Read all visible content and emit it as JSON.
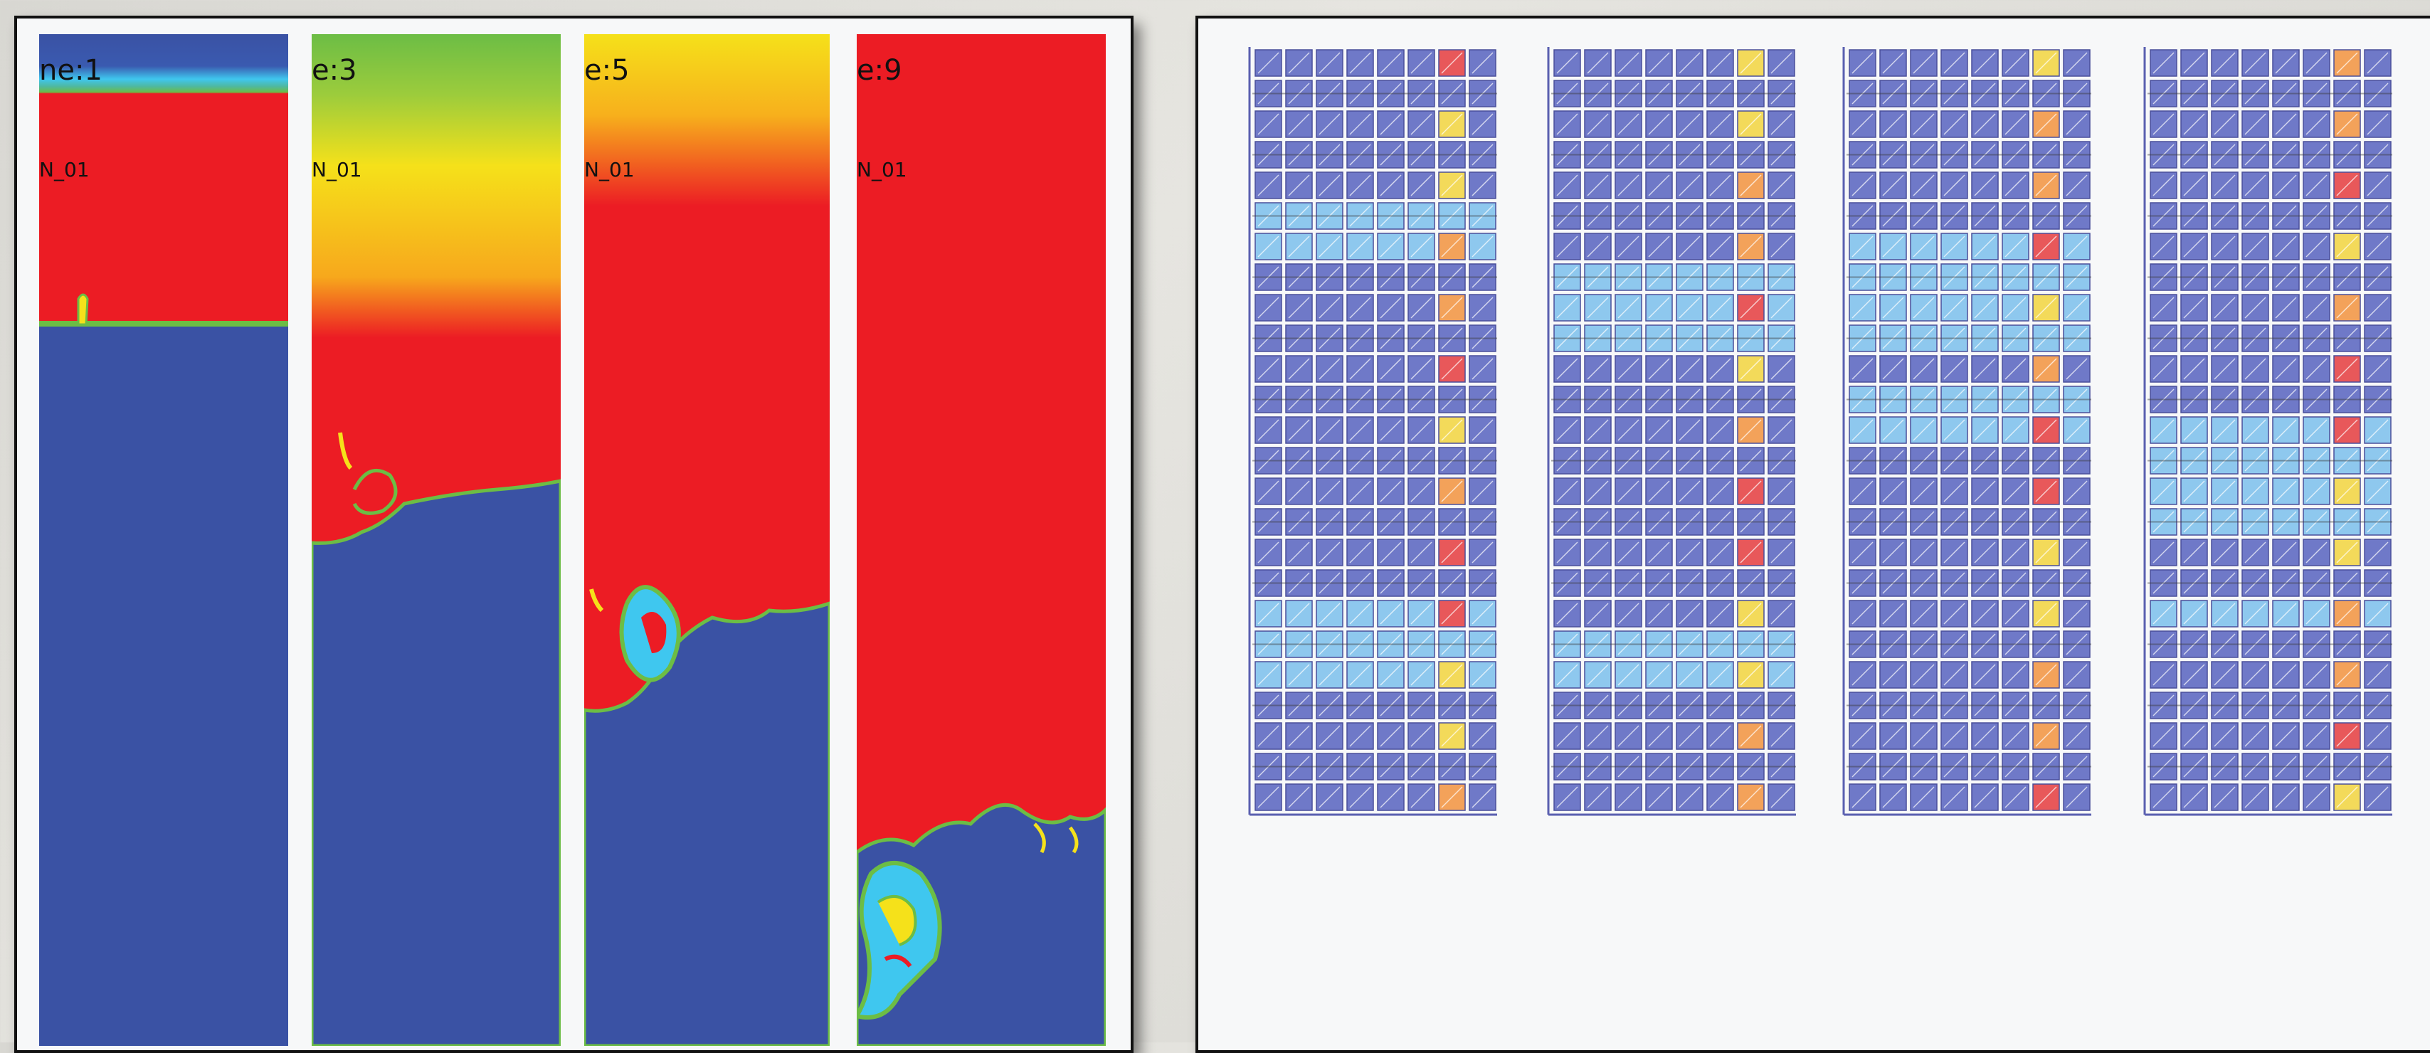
{
  "simulation_panels": [
    {
      "time_label": "ne:1",
      "name_label": "N_01",
      "colormap": "interface-low"
    },
    {
      "time_label": "e:3",
      "name_label": "N_01",
      "colormap": "rollup"
    },
    {
      "time_label": "e:5",
      "name_label": "N_01",
      "colormap": "mixing"
    },
    {
      "time_label": "e:9",
      "name_label": "N_01",
      "colormap": "turbulent"
    }
  ],
  "grid_panels": [
    {
      "rows": 25,
      "cols": 8,
      "highlight_column": 7
    },
    {
      "rows": 25,
      "cols": 8,
      "highlight_column": 7
    },
    {
      "rows": 25,
      "cols": 8,
      "highlight_column": 7
    },
    {
      "rows": 25,
      "cols": 8,
      "highlight_column": 7
    }
  ],
  "colors": {
    "sim_blue": "#3a52a4",
    "sim_red": "#ec1c24",
    "sim_yellow": "#f5e11a",
    "sim_green": "#6cbd45",
    "sim_cyan": "#3fc7ef",
    "tile_blue": "#6f79c8",
    "tile_light": "#8ec8ee",
    "tile_yellow": "#f3da5a",
    "tile_orange": "#f3a25a",
    "tile_red": "#e8585a"
  }
}
